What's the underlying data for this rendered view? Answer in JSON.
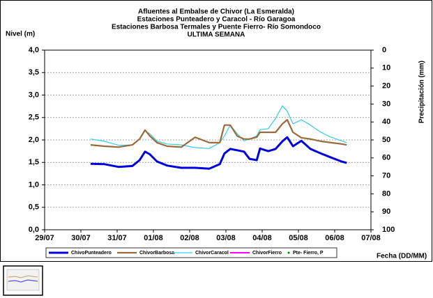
{
  "chart_data": {
    "type": "line",
    "title": "Afluentes al Embalse de Chivor (La Esmeralda)",
    "subtitle": [
      "Estaciones Punteadero y Caracol - Río Garagoa",
      "Estaciones Barbosa Termales y Puente Fierro- Río Somondoco",
      "ULTIMA SEMANA"
    ],
    "y_label": "Nivel (m)",
    "y2_label": "Precipitación (mm)",
    "x_label": "Fecha (DD/MM)",
    "xlim": [
      0,
      9
    ],
    "xticks": [
      {
        "value": 0,
        "label": "29/07"
      },
      {
        "value": 1,
        "label": "30/07"
      },
      {
        "value": 2,
        "label": "31/07"
      },
      {
        "value": 3,
        "label": "01/08"
      },
      {
        "value": 4,
        "label": "02/08"
      },
      {
        "value": 5,
        "label": "03/08"
      },
      {
        "value": 6,
        "label": "04/08"
      },
      {
        "value": 7,
        "label": "05/08"
      },
      {
        "value": 8,
        "label": "06/08"
      },
      {
        "value": 9,
        "label": "07/08"
      }
    ],
    "ylim": [
      0,
      4
    ],
    "yticks": [
      {
        "value": 0,
        "label": "0,0"
      },
      {
        "value": 0.5,
        "label": "0,5"
      },
      {
        "value": 1,
        "label": "1,0"
      },
      {
        "value": 1.5,
        "label": "1,5"
      },
      {
        "value": 2,
        "label": "2,0"
      },
      {
        "value": 2.5,
        "label": "2,5"
      },
      {
        "value": 3,
        "label": "3,0"
      },
      {
        "value": 3.5,
        "label": "3,5"
      },
      {
        "value": 4,
        "label": "4,0"
      }
    ],
    "y2lim": [
      0,
      100
    ],
    "y2ticks": [
      0,
      10,
      20,
      30,
      40,
      50,
      60,
      70,
      80,
      90,
      100
    ],
    "y2_reversed": true,
    "grid": true,
    "x": [
      1.27,
      1.65,
      2.04,
      2.42,
      2.62,
      2.77,
      2.9,
      3.1,
      3.38,
      3.77,
      4.15,
      4.54,
      4.83,
      4.96,
      5.12,
      5.31,
      5.5,
      5.65,
      5.85,
      5.94,
      6.17,
      6.37,
      6.56,
      6.69,
      6.85,
      7.08,
      7.33,
      7.62,
      7.9,
      8.19,
      8.33
    ],
    "series": [
      {
        "name": "ChivoPunteadero",
        "color": "#0000dd",
        "width": 3,
        "values": [
          1.47,
          1.46,
          1.4,
          1.42,
          1.55,
          1.74,
          1.68,
          1.52,
          1.43,
          1.38,
          1.38,
          1.36,
          1.46,
          1.7,
          1.8,
          1.77,
          1.74,
          1.58,
          1.55,
          1.81,
          1.75,
          1.8,
          1.97,
          2.06,
          1.86,
          1.98,
          1.8,
          1.7,
          1.61,
          1.52,
          1.49
        ]
      },
      {
        "name": "ChivorBarbosa",
        "color": "#9b6a3a",
        "width": 2.2,
        "values": [
          1.89,
          1.86,
          1.84,
          1.89,
          2.02,
          2.22,
          2.09,
          1.94,
          1.86,
          1.84,
          2.06,
          1.94,
          1.94,
          2.33,
          2.33,
          2.09,
          2.02,
          2.02,
          2.06,
          2.17,
          2.17,
          2.17,
          2.36,
          2.45,
          2.17,
          2.05,
          2.02,
          1.97,
          1.94,
          1.91,
          1.89
        ]
      },
      {
        "name": "ChivorCaracol",
        "color": "#33ccee",
        "width": 1.2,
        "values": [
          2.02,
          1.97,
          1.88,
          1.89,
          2.02,
          2.2,
          2.14,
          1.97,
          1.91,
          1.89,
          1.83,
          1.81,
          1.94,
          2.09,
          2.33,
          2.14,
          1.98,
          2.02,
          2.09,
          2.23,
          2.25,
          2.48,
          2.76,
          2.64,
          2.36,
          2.45,
          2.33,
          2.17,
          2.06,
          1.98,
          1.94
        ]
      },
      {
        "name": "ChivorFierro",
        "color": "#ff00ff",
        "width": 2,
        "values": [
          null,
          null,
          null,
          null,
          null,
          null,
          null,
          null,
          null,
          null,
          null,
          null,
          null,
          null,
          null,
          null,
          null,
          null,
          null,
          null,
          null,
          null,
          null,
          null,
          null,
          null,
          null,
          null,
          null,
          null,
          null
        ]
      },
      {
        "name": "Pte- Fierro, P",
        "color": "#008000",
        "axis": "y2",
        "marker": "dot",
        "values": [
          null,
          null,
          null,
          null,
          null,
          null,
          null,
          null,
          null,
          null,
          null,
          null,
          null,
          null,
          null,
          null,
          null,
          null,
          null,
          null,
          null,
          null,
          null,
          null,
          null,
          null,
          null,
          null,
          null,
          null,
          null
        ]
      }
    ]
  }
}
